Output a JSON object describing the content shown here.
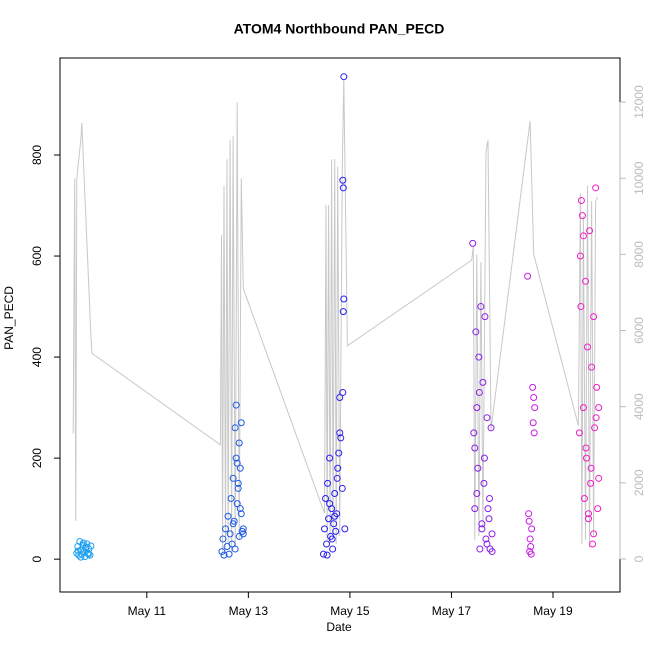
{
  "chart_data": {
    "type": "scatter",
    "title": "ATOM4 Northbound PAN_PECD",
    "x_label": "Date",
    "y_label": "PAN_PECD",
    "xlim": [
      9.29,
      20.32
    ],
    "xticks": [
      {
        "value": 11,
        "label": "May 11"
      },
      {
        "value": 13,
        "label": "May 13"
      },
      {
        "value": 15,
        "label": "May 15"
      },
      {
        "value": 17,
        "label": "May 17"
      },
      {
        "value": 19,
        "label": "May 19"
      }
    ],
    "ylim": [
      -65,
      992
    ],
    "yticks": [
      0,
      200,
      400,
      600,
      800
    ],
    "y2lim": [
      -867,
      13157
    ],
    "y2ticks": [
      0,
      2000,
      4000,
      6000,
      8000,
      10000,
      12000
    ],
    "y2_color": "#bbbbbb",
    "series": [
      {
        "type": "line",
        "axis": "y2",
        "color": "#c8c8c8",
        "x": [
          9.55,
          9.58,
          9.6,
          9.62,
          9.66,
          9.7,
          9.72,
          9.9,
          9.92,
          12.45,
          12.47,
          12.49,
          12.52,
          12.55,
          12.58,
          12.6,
          12.64,
          12.67,
          12.7,
          12.74,
          12.78,
          12.82,
          12.86,
          12.9,
          14.5,
          14.53,
          14.55,
          14.58,
          14.61,
          14.64,
          14.67,
          14.7,
          14.73,
          14.76,
          14.8,
          14.85,
          14.88,
          14.95,
          17.4,
          17.43,
          17.46,
          17.5,
          17.54,
          17.58,
          17.62,
          17.68,
          17.72,
          17.78,
          18.55,
          18.62,
          19.5,
          19.54,
          19.57,
          19.6,
          19.64,
          19.68,
          19.72,
          19.76,
          19.8,
          19.84,
          19.88
        ],
        "values": [
          3300,
          10000,
          1000,
          10000,
          10500,
          11000,
          11450,
          5800,
          5400,
          3000,
          8500,
          200,
          9800,
          300,
          10500,
          400,
          11000,
          200,
          11100,
          300,
          12000,
          500,
          10000,
          7100,
          1200,
          9300,
          500,
          9300,
          400,
          10500,
          500,
          10500,
          400,
          10300,
          600,
          10300,
          12600,
          5600,
          7850,
          8200,
          500,
          8000,
          600,
          7800,
          800,
          10700,
          11000,
          3400,
          11500,
          8000,
          3500,
          9600,
          400,
          9000,
          500,
          9800,
          300,
          9400,
          600,
          9400,
          9500
        ]
      },
      {
        "type": "scatter",
        "color": "#1ea0f0",
        "x": [
          9.62,
          9.64,
          9.66,
          9.68,
          9.7,
          9.72,
          9.74,
          9.76,
          9.78,
          9.8,
          9.82,
          9.84,
          9.86,
          9.88,
          9.9,
          9.65,
          9.75,
          9.85,
          9.7,
          9.8
        ],
        "values": [
          12,
          25,
          8,
          35,
          18,
          10,
          28,
          15,
          5,
          22,
          30,
          12,
          20,
          8,
          26,
          16,
          32,
          10,
          4,
          24
        ]
      },
      {
        "type": "scatter",
        "color": "#1e5ae6",
        "x": [
          12.48,
          12.5,
          12.52,
          12.55,
          12.58,
          12.6,
          12.62,
          12.64,
          12.66,
          12.68,
          12.7,
          12.72,
          12.74,
          12.76,
          12.78,
          12.8,
          12.82,
          12.84,
          12.86,
          12.88,
          12.9,
          12.74,
          12.78,
          12.82,
          12.86,
          12.7,
          12.76,
          12.8,
          12.84,
          12.9
        ],
        "values": [
          15,
          40,
          8,
          60,
          25,
          85,
          10,
          50,
          120,
          30,
          160,
          75,
          260,
          305,
          190,
          140,
          230,
          180,
          90,
          55,
          50,
          20,
          110,
          45,
          270,
          70,
          200,
          150,
          100,
          60
        ]
      },
      {
        "type": "scatter",
        "color": "#2a1ef0",
        "x": [
          14.48,
          14.5,
          14.52,
          14.54,
          14.56,
          14.58,
          14.6,
          14.62,
          14.64,
          14.66,
          14.68,
          14.7,
          14.72,
          14.74,
          14.76,
          14.78,
          14.8,
          14.82,
          14.88,
          14.86,
          14.87,
          14.88,
          14.87,
          14.86,
          14.55,
          14.6,
          14.65,
          14.7,
          14.75,
          14.8,
          14.85,
          14.9
        ],
        "values": [
          10,
          60,
          120,
          30,
          150,
          80,
          200,
          45,
          100,
          20,
          70,
          130,
          55,
          90,
          180,
          210,
          320,
          240,
          955,
          750,
          735,
          515,
          490,
          330,
          8,
          110,
          40,
          85,
          160,
          250,
          140,
          60
        ]
      },
      {
        "type": "scatter",
        "color": "#8a1ee6",
        "x": [
          17.42,
          17.44,
          17.46,
          17.48,
          17.5,
          17.52,
          17.54,
          17.56,
          17.58,
          17.6,
          17.62,
          17.64,
          17.66,
          17.68,
          17.7,
          17.72,
          17.74,
          17.76,
          17.78,
          17.8,
          17.46,
          17.5,
          17.55,
          17.6,
          17.65,
          17.7,
          17.75,
          17.8
        ],
        "values": [
          625,
          250,
          100,
          450,
          300,
          180,
          400,
          20,
          500,
          60,
          350,
          150,
          480,
          40,
          280,
          100,
          80,
          20,
          260,
          15,
          220,
          130,
          330,
          70,
          200,
          30,
          120,
          50
        ]
      },
      {
        "type": "scatter",
        "color": "#c81ee6",
        "x": [
          18.5,
          18.52,
          18.54,
          18.55,
          18.56,
          18.58,
          18.6,
          18.62,
          18.64,
          18.53,
          18.57,
          18.61,
          18.63
        ],
        "values": [
          560,
          90,
          15,
          40,
          25,
          60,
          340,
          320,
          300,
          75,
          10,
          270,
          250
        ]
      },
      {
        "type": "scatter",
        "color": "#f01ec8",
        "x": [
          19.52,
          19.54,
          19.56,
          19.58,
          19.6,
          19.62,
          19.64,
          19.66,
          19.68,
          19.7,
          19.72,
          19.74,
          19.76,
          19.78,
          19.8,
          19.82,
          19.84,
          19.86,
          19.88,
          19.9,
          19.55,
          19.6,
          19.65,
          19.7,
          19.75,
          19.8,
          19.85,
          19.9
        ],
        "values": [
          250,
          600,
          710,
          680,
          300,
          120,
          550,
          200,
          420,
          80,
          650,
          150,
          380,
          30,
          480,
          260,
          735,
          340,
          100,
          300,
          500,
          640,
          220,
          90,
          180,
          50,
          280,
          160
        ]
      }
    ]
  }
}
